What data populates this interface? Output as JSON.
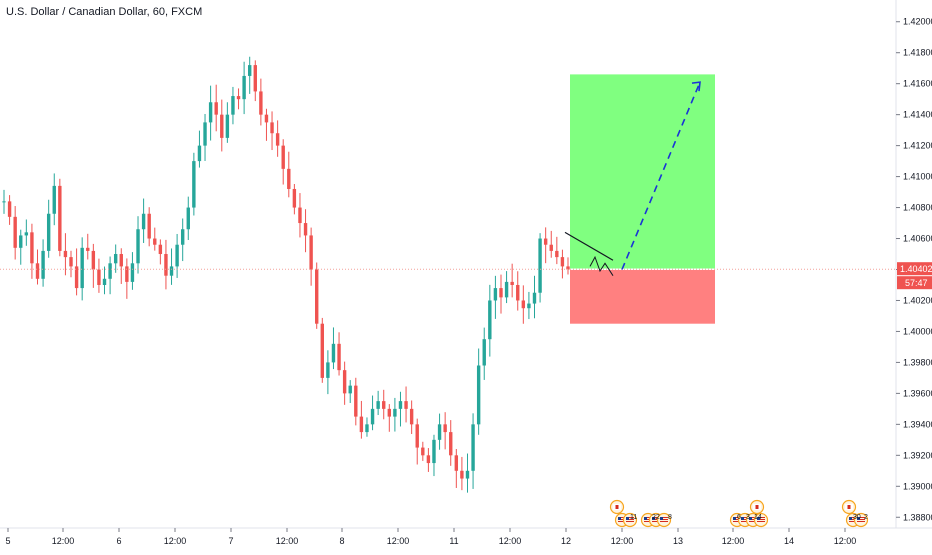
{
  "header": {
    "symbol_title": "U.S. Dollar / Canadian Dollar, 60, FXCM"
  },
  "colors": {
    "up": "#26a69a",
    "down": "#ef5350",
    "price_line": "#f4a09a",
    "price_label_bg": "#ef5350",
    "profit_zone": "#80ff80",
    "loss_zone": "#ff8080",
    "projection": "#1a33d6",
    "axis_text": "#131722",
    "axis_line": "#787b86"
  },
  "price_axis": {
    "min": 1.3875,
    "max": 1.4205,
    "ticks": [
      "1.42000",
      "1.41800",
      "1.41600",
      "1.41400",
      "1.41200",
      "1.41000",
      "1.40800",
      "1.40600",
      "1.40400",
      "1.40200",
      "1.40000",
      "1.39800",
      "1.39600",
      "1.39400",
      "1.39200",
      "1.39000",
      "1.38800"
    ],
    "current_price": "1.40402",
    "countdown": "57:47"
  },
  "time_axis": {
    "labels": [
      "5",
      "12:00",
      "6",
      "12:00",
      "7",
      "12:00",
      "8",
      "12:00",
      "11",
      "12:00",
      "12",
      "12:00",
      "13",
      "12:00",
      "14",
      "12:00"
    ]
  },
  "events": [
    {
      "time": "12:00 (12)",
      "count": "11"
    },
    {
      "time": "12:00 (12)",
      "count": "22"
    },
    {
      "time": "12:00 (12)",
      "count": "8"
    },
    {
      "time": "12:00 (13)",
      "count": "6"
    },
    {
      "time": "12:00 (13)",
      "count": "3"
    },
    {
      "time": "12:00 (13)",
      "count": "14"
    },
    {
      "time": "12:00 (14)",
      "count": "30"
    },
    {
      "time": "12:00 (14)",
      "count": "2"
    }
  ],
  "chart_data": {
    "type": "candlestick",
    "title": "U.S. Dollar / Canadian Dollar, 60, FXCM",
    "interval": "60",
    "ylim": [
      1.3875,
      1.4205
    ],
    "start_label": "5",
    "trend": [
      1.4084,
      1.4074,
      1.4054,
      1.4062,
      1.4064,
      1.4044,
      1.4034,
      1.4052,
      1.4076,
      1.4094,
      1.4052,
      1.4048,
      1.4042,
      1.4028,
      1.4054,
      1.4052,
      1.404,
      1.403,
      1.4034,
      1.4044,
      1.405,
      1.4042,
      1.4032,
      1.4044,
      1.4066,
      1.4076,
      1.406,
      1.4056,
      1.405,
      1.4036,
      1.4042,
      1.4056,
      1.4066,
      1.408,
      1.411,
      1.412,
      1.4135,
      1.4148,
      1.414,
      1.4125,
      1.414,
      1.4152,
      1.415,
      1.4165,
      1.4172,
      1.4155,
      1.414,
      1.4135,
      1.4128,
      1.412,
      1.4105,
      1.4092,
      1.408,
      1.407,
      1.4062,
      1.404,
      1.4005,
      1.397,
      1.398,
      1.3992,
      1.3975,
      1.396,
      1.3965,
      1.3945,
      1.3935,
      1.394,
      1.395,
      1.3955,
      1.395,
      1.3945,
      1.395,
      1.3955,
      1.395,
      1.394,
      1.3925,
      1.392,
      1.3915,
      1.393,
      1.394,
      1.3935,
      1.392,
      1.391,
      1.3905,
      1.391,
      1.394,
      1.3978,
      1.3995,
      1.402,
      1.4028,
      1.4022,
      1.4032,
      1.403,
      1.402,
      1.4015,
      1.4018,
      1.4025,
      1.406,
      1.4056,
      1.4052,
      1.4048,
      1.4042,
      1.404
    ],
    "support_resistance": {
      "current": 1.40402
    },
    "trade_setup": {
      "entry": 1.40402,
      "target": 1.4166,
      "stop": 1.4005
    },
    "projection": [
      1.404,
      1.4161
    ]
  }
}
